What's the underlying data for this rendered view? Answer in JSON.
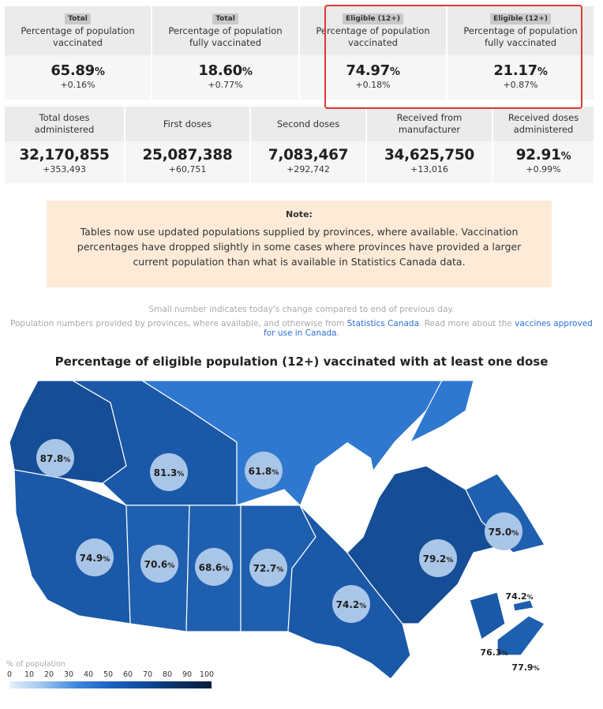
{
  "summary_top": [
    {
      "badge": "Total",
      "label_line1": "Percentage of population",
      "label_line2": "vaccinated",
      "value": "65.89",
      "unit": "%",
      "change": "+0.16%"
    },
    {
      "badge": "Total",
      "label_line1": "Percentage of population",
      "label_line2": "fully vaccinated",
      "value": "18.60",
      "unit": "%",
      "change": "+0.77%"
    },
    {
      "badge": "Eligible (12+)",
      "label_line1": "Percentage of population",
      "label_line2": "vaccinated",
      "value": "74.97",
      "unit": "%",
      "change": "+0.18%"
    },
    {
      "badge": "Eligible (12+)",
      "label_line1": "Percentage of population",
      "label_line2": "fully vaccinated",
      "value": "21.17",
      "unit": "%",
      "change": "+0.87%"
    }
  ],
  "summary_doses": [
    {
      "label_line1": "Total doses",
      "label_line2": "administered",
      "value": "32,170,855",
      "unit": "",
      "change": "+353,493"
    },
    {
      "label_line1": "First doses",
      "label_line2": "",
      "value": "25,087,388",
      "unit": "",
      "change": "+60,751"
    },
    {
      "label_line1": "Second doses",
      "label_line2": "",
      "value": "7,083,467",
      "unit": "",
      "change": "+292,742"
    },
    {
      "label_line1": "Received from",
      "label_line2": "manufacturer",
      "value": "34,625,750",
      "unit": "",
      "change": "+13,016"
    },
    {
      "label_line1": "Received doses",
      "label_line2": "administered",
      "value": "92.91",
      "unit": "%",
      "change": "+0.99%"
    }
  ],
  "note": {
    "title": "Note:",
    "text": "Tables now use updated populations supplied by provinces, where available. Vaccination percentages have dropped slightly in some cases where provinces have provided a larger current population than what is available in Statistics Canada data."
  },
  "info": {
    "line1": "Small number indicates today's change compared to end of previous day.",
    "line2_prefix": "Population numbers provided by provinces, where available, and otherwise from ",
    "link1": "Statistics Canada",
    "line2_middle": ". Read more about the ",
    "link2": "vaccines approved for use in Canada",
    "line2_suffix": "."
  },
  "map": {
    "title": "Percentage of eligible population (12+) vaccinated with at least one dose",
    "regions": [
      {
        "value": "87.8",
        "unit": "%"
      },
      {
        "value": "81.3",
        "unit": "%"
      },
      {
        "value": "61.8",
        "unit": "%"
      },
      {
        "value": "74.9",
        "unit": "%"
      },
      {
        "value": "70.6",
        "unit": "%"
      },
      {
        "value": "68.6",
        "unit": "%"
      },
      {
        "value": "72.7",
        "unit": "%"
      },
      {
        "value": "74.2",
        "unit": "%"
      },
      {
        "value": "79.2",
        "unit": "%"
      },
      {
        "value": "75.0",
        "unit": "%"
      },
      {
        "value": "74.2",
        "unit": "%"
      },
      {
        "value": "76.3",
        "unit": "%"
      },
      {
        "value": "77.9",
        "unit": "%"
      }
    ],
    "legend": {
      "title": "% of population",
      "ticks": [
        "0",
        "10",
        "20",
        "30",
        "40",
        "50",
        "60",
        "70",
        "80",
        "90",
        "100"
      ]
    }
  },
  "colors": {
    "map_fill": "#1f5fb0",
    "map_fill_north": "#2f78cf",
    "map_fill_dark": "#154d96",
    "bubble": "#a9c6e8",
    "highlight": "#e03a2f",
    "note_bg": "#fdebd8",
    "link": "#2a6fd6"
  }
}
